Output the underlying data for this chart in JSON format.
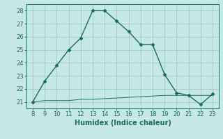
{
  "x": [
    8,
    9,
    10,
    11,
    12,
    13,
    14,
    15,
    16,
    17,
    18,
    19,
    20,
    21,
    22,
    23
  ],
  "y_main": [
    21.0,
    22.6,
    23.8,
    25.0,
    25.9,
    28.0,
    28.0,
    27.2,
    26.4,
    25.4,
    25.4,
    23.1,
    21.7,
    21.5,
    20.8,
    21.6
  ],
  "y_low": [
    21.0,
    21.1,
    21.1,
    21.1,
    21.2,
    21.2,
    21.25,
    21.3,
    21.35,
    21.4,
    21.45,
    21.5,
    21.5,
    21.5,
    21.5,
    21.5
  ],
  "line_color": "#1a6b5e",
  "bg_color": "#c5e8e4",
  "grid_color": "#9dccc7",
  "xlabel": "Humidex (Indice chaleur)",
  "ylim": [
    20.5,
    28.5
  ],
  "xlim": [
    7.5,
    23.5
  ],
  "yticks": [
    21,
    22,
    23,
    24,
    25,
    26,
    27,
    28
  ],
  "xticks": [
    8,
    9,
    10,
    11,
    12,
    13,
    14,
    15,
    16,
    17,
    18,
    19,
    20,
    21,
    22,
    23
  ],
  "tick_fontsize": 6,
  "xlabel_fontsize": 7,
  "marker_size": 2.5,
  "line_width": 1.0
}
